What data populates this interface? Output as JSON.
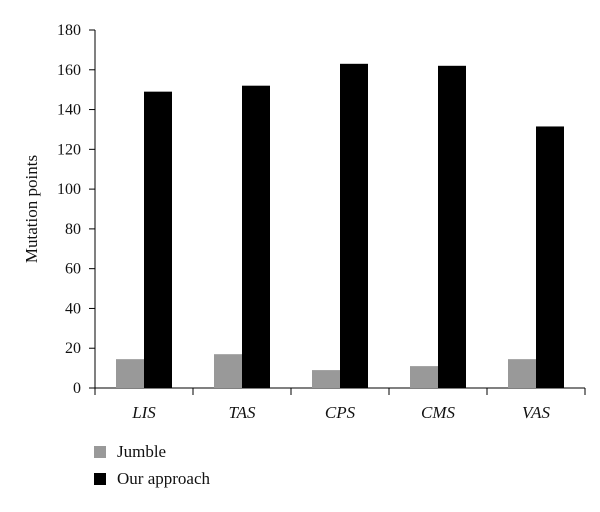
{
  "chart_data": {
    "type": "bar",
    "categories": [
      "LIS",
      "TAS",
      "CPS",
      "CMS",
      "VAS"
    ],
    "series": [
      {
        "name": "Jumble",
        "values": [
          14.5,
          17,
          9,
          11,
          14.5
        ],
        "color": "#999999"
      },
      {
        "name": "Our approach",
        "values": [
          149,
          152,
          163,
          162,
          131.5
        ],
        "color": "#000000"
      }
    ],
    "ylabel": "Mutation points",
    "xlabel": "",
    "ylim": [
      0,
      180
    ],
    "yticks": [
      0,
      20,
      40,
      60,
      80,
      100,
      120,
      140,
      160,
      180
    ],
    "grid": false,
    "legend_position": "bottom-left"
  }
}
